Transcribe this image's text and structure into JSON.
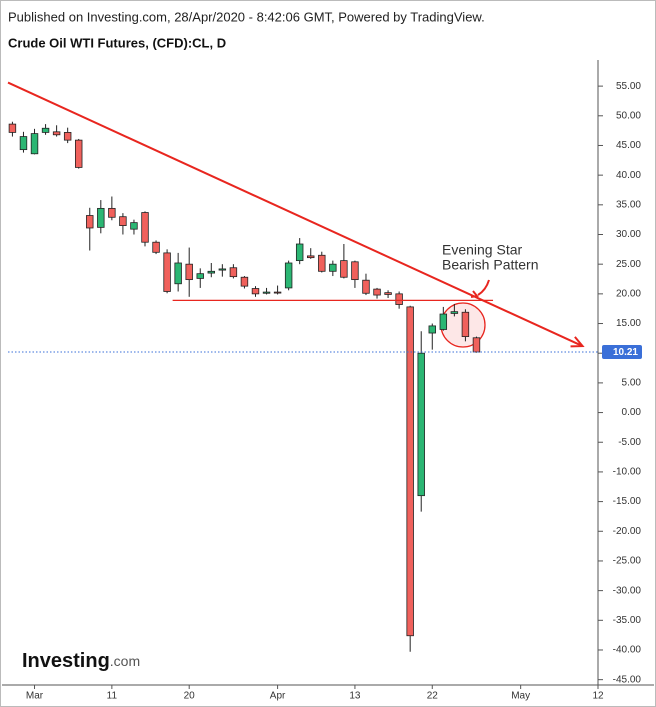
{
  "chart_data": {
    "type": "candlestick",
    "header": "Published on Investing.com, 28/Apr/2020 - 8:42:06 GMT, Powered by TradingView.",
    "title": "Crude Oil WTI Futures, (CFD):CL, D",
    "logo": [
      "Investing",
      ".com"
    ],
    "open": [
      48.6,
      44.3,
      43.6,
      47.2,
      47.3,
      47.2,
      45.9,
      33.2,
      31.2,
      34.4,
      33.0,
      30.9,
      33.7,
      28.7,
      26.9,
      21.7,
      25.0,
      22.6,
      23.5,
      24.0,
      24.4,
      22.8,
      20.9,
      20.1,
      20.3,
      21.0,
      25.6,
      26.4,
      26.5,
      23.8,
      25.6,
      25.4,
      22.3,
      20.8,
      20.2,
      20.0,
      17.8,
      -14.0,
      13.4,
      14.0,
      16.7,
      16.9,
      12.6
    ],
    "high": [
      49.0,
      47.3,
      47.8,
      48.6,
      48.4,
      48.0,
      46.1,
      34.5,
      35.8,
      36.4,
      33.6,
      32.5,
      33.9,
      29.0,
      27.5,
      26.9,
      27.8,
      24.3,
      25.2,
      25.0,
      25.0,
      23.0,
      21.3,
      21.0,
      21.4,
      25.6,
      29.4,
      27.7,
      27.1,
      25.6,
      28.4,
      25.6,
      23.4,
      21.0,
      20.6,
      20.4,
      18.0,
      13.7,
      15.0,
      17.8,
      18.3,
      17.4,
      12.8
    ],
    "low": [
      46.5,
      43.8,
      43.5,
      46.8,
      46.5,
      45.4,
      41.1,
      27.3,
      30.2,
      32.4,
      30.0,
      30.0,
      28.0,
      26.7,
      20.1,
      20.4,
      19.5,
      21.0,
      22.8,
      22.9,
      22.6,
      20.9,
      19.5,
      19.9,
      19.9,
      20.6,
      25.0,
      25.9,
      23.6,
      23.0,
      22.6,
      21.0,
      19.8,
      19.2,
      19.3,
      17.5,
      -40.3,
      -16.7,
      10.6,
      13.8,
      16.2,
      12.0,
      10.1
    ],
    "close": [
      47.2,
      46.5,
      47.0,
      47.9,
      46.8,
      45.9,
      41.3,
      31.1,
      34.4,
      32.9,
      31.5,
      32.0,
      28.7,
      27.0,
      20.4,
      25.2,
      22.4,
      23.4,
      23.8,
      24.2,
      22.9,
      21.3,
      20.0,
      20.3,
      20.2,
      25.2,
      28.4,
      26.1,
      23.8,
      25.0,
      22.8,
      22.4,
      20.1,
      19.8,
      19.9,
      18.2,
      -37.6,
      10.0,
      14.6,
      16.6,
      17.0,
      12.8,
      10.2
    ],
    "up_color": "#2bb673",
    "down_color": "#f0615c",
    "xlim": [
      -0.4,
      53
    ],
    "xticks": [
      {
        "value": 2,
        "label": "Mar"
      },
      {
        "value": 9,
        "label": "11"
      },
      {
        "value": 16,
        "label": "20"
      },
      {
        "value": 24,
        "label": "Apr"
      },
      {
        "value": 31,
        "label": "13"
      },
      {
        "value": 38,
        "label": "22"
      },
      {
        "value": 46,
        "label": "May"
      },
      {
        "value": 53,
        "label": "12"
      }
    ],
    "ylim": [
      -45.9,
      59.4
    ],
    "yticks": [
      {
        "value": 55,
        "label": "55.00"
      },
      {
        "value": 50,
        "label": "50.00"
      },
      {
        "value": 45,
        "label": "45.00"
      },
      {
        "value": 40,
        "label": "40.00"
      },
      {
        "value": 35,
        "label": "35.00"
      },
      {
        "value": 30,
        "label": "30.00"
      },
      {
        "value": 25,
        "label": "25.00"
      },
      {
        "value": 20,
        "label": "20.00"
      },
      {
        "value": 15,
        "label": "15.00"
      },
      {
        "value": 10,
        "label": "10.00"
      },
      {
        "value": 5,
        "label": "5.00"
      },
      {
        "value": 0,
        "label": "0.00"
      },
      {
        "value": -5,
        "label": "-5.00"
      },
      {
        "value": -10,
        "label": "-10.00"
      },
      {
        "value": -15,
        "label": "-15.00"
      },
      {
        "value": -20,
        "label": "-20.00"
      },
      {
        "value": -25,
        "label": "-25.00"
      },
      {
        "value": -30,
        "label": "-30.00"
      },
      {
        "value": -35,
        "label": "-35.00"
      },
      {
        "value": -40,
        "label": "-40.00"
      },
      {
        "value": -45,
        "label": "-45.00"
      }
    ],
    "last_price": 10.21,
    "last_price_color": "#3a6fd8",
    "trendline": {
      "x": [
        -0.4,
        51.6
      ],
      "y": [
        55.6,
        11.2
      ],
      "color": "#e8261f"
    },
    "support_line": {
      "x": [
        14.5,
        43.5
      ],
      "y": [
        18.9,
        18.9
      ],
      "color": "#e8261f"
    },
    "annotations": [
      "Evening Star",
      "Bearish Pattern"
    ]
  }
}
